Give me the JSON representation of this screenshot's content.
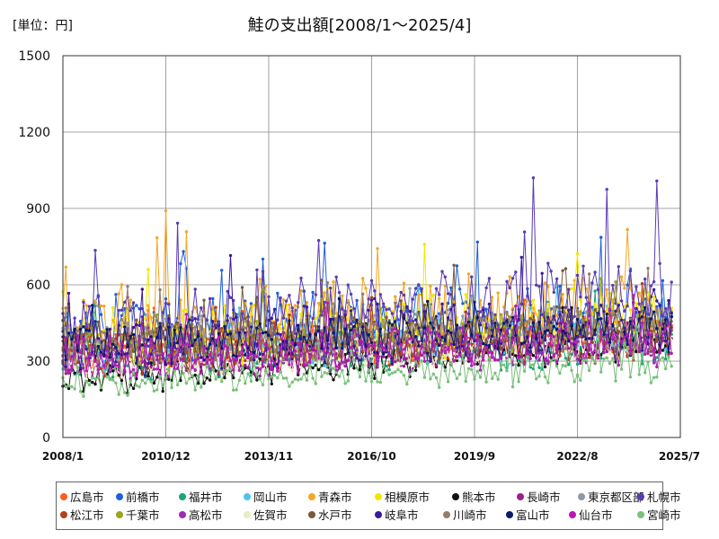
{
  "chart_data": {
    "type": "line",
    "title": "鮭の支出額[2008/1～2025/4]",
    "unit_label": "[単位：円]",
    "ylim": [
      0,
      1500
    ],
    "y_ticks": [
      0,
      300,
      600,
      900,
      1200,
      1500
    ],
    "y_tick_labels": [
      "0",
      "300",
      "600",
      "900",
      "1200",
      "1500"
    ],
    "x_range": [
      "2008/1",
      "2025/7"
    ],
    "x_ticks": [
      "2008/1",
      "2010/12",
      "2013/11",
      "2016/10",
      "2019/9",
      "2022/8",
      "2025/7"
    ],
    "grid": true,
    "legend_position": "bottom",
    "series": [
      {
        "name": "広島市",
        "color": "#ff5a1f",
        "base": 330,
        "amp": 70,
        "trend": 90
      },
      {
        "name": "前橋市",
        "color": "#1f5fe0",
        "base": 420,
        "amp": 110,
        "trend": 60
      },
      {
        "name": "福井市",
        "color": "#1aa37a",
        "base": 310,
        "amp": 70,
        "trend": 50
      },
      {
        "name": "岡山市",
        "color": "#4cc3f0",
        "base": 330,
        "amp": 70,
        "trend": 80
      },
      {
        "name": "青森市",
        "color": "#f5a623",
        "base": 440,
        "amp": 120,
        "trend": 80
      },
      {
        "name": "相模原市",
        "color": "#f2e600",
        "base": 380,
        "amp": 100,
        "trend": 90
      },
      {
        "name": "熊本市",
        "color": "#111111",
        "base": 220,
        "amp": 50,
        "trend": 150
      },
      {
        "name": "長崎市",
        "color": "#9b1f8f",
        "base": 280,
        "amp": 60,
        "trend": 110
      },
      {
        "name": "東京都区部",
        "color": "#8c9aa8",
        "base": 380,
        "amp": 60,
        "trend": 80
      },
      {
        "name": "札幌市",
        "color": "#5a3bb5",
        "base": 430,
        "amp": 110,
        "trend": 140
      },
      {
        "name": "松江市",
        "color": "#b2401e",
        "base": 330,
        "amp": 70,
        "trend": 60
      },
      {
        "name": "千葉市",
        "color": "#9aa51d",
        "base": 350,
        "amp": 70,
        "trend": 80
      },
      {
        "name": "高松市",
        "color": "#a02ab5",
        "base": 300,
        "amp": 60,
        "trend": 60
      },
      {
        "name": "佐賀市",
        "color": "#e8ecc0",
        "base": 300,
        "amp": 60,
        "trend": 80
      },
      {
        "name": "水戸市",
        "color": "#7a5a3a",
        "base": 360,
        "amp": 80,
        "trend": 70
      },
      {
        "name": "岐阜市",
        "color": "#3a1a9a",
        "base": 360,
        "amp": 100,
        "trend": 110
      },
      {
        "name": "川崎市",
        "color": "#9a7a6a",
        "base": 370,
        "amp": 70,
        "trend": 60
      },
      {
        "name": "富山市",
        "color": "#0a1a6a",
        "base": 360,
        "amp": 70,
        "trend": 60
      },
      {
        "name": "仙台市",
        "color": "#b51ab5",
        "base": 310,
        "amp": 70,
        "trend": 60
      },
      {
        "name": "宮崎市",
        "color": "#7ac07a",
        "base": 220,
        "amp": 50,
        "trend": 60
      }
    ],
    "peaks": [
      {
        "series": "札幌市",
        "date": "2021/5",
        "value": 1020
      },
      {
        "series": "札幌市",
        "date": "2024/11",
        "value": 1008
      },
      {
        "series": "札幌市",
        "date": "2023/6",
        "value": 975
      },
      {
        "series": "青森市",
        "date": "2010/12",
        "value": 890
      },
      {
        "series": "札幌市",
        "date": "2011/4",
        "value": 842
      }
    ]
  }
}
